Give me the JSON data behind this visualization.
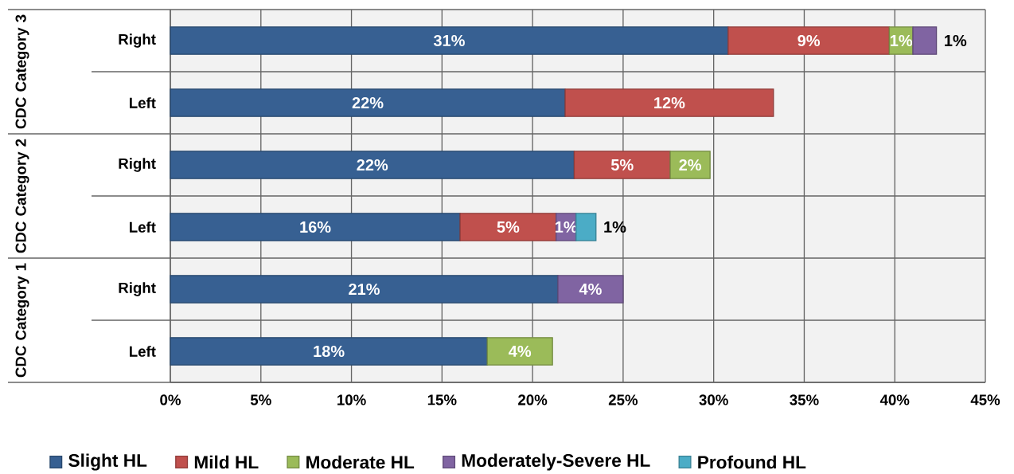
{
  "chart_data": {
    "type": "bar",
    "orientation": "horizontal",
    "stacked": true,
    "categories": [
      "Right",
      "Left",
      "Right",
      "Left",
      "Right",
      "Left"
    ],
    "annotations": [
      "CDC Category 3",
      "CDC Category 2",
      "CDC Category 1"
    ],
    "series": [
      {
        "name": "Slight HL",
        "color": "#376092",
        "values": [
          30.8,
          21.8,
          22.3,
          16.0,
          21.4,
          17.5
        ],
        "value_labels": [
          "31%",
          "22%",
          "22%",
          "16%",
          "21%",
          "18%"
        ]
      },
      {
        "name": "Mild HL",
        "color": "#c0504d",
        "values": [
          8.9,
          11.5,
          5.3,
          5.3,
          null,
          null
        ],
        "value_labels": [
          "9%",
          "12%",
          "5%",
          "5%",
          null,
          null
        ]
      },
      {
        "name": "Moderate HL",
        "color": "#9bbb59",
        "values": [
          1.3,
          null,
          2.2,
          null,
          null,
          3.6
        ],
        "value_labels": [
          "1%",
          null,
          "2%",
          null,
          null,
          "4%"
        ]
      },
      {
        "name": "Moderately-Severe HL",
        "color": "#8064a2",
        "values": [
          1.3,
          null,
          null,
          1.1,
          3.6,
          null
        ],
        "value_labels": [
          "1%",
          null,
          null,
          "1%",
          "4%",
          null
        ]
      },
      {
        "name": "Profound HL",
        "color": "#4bacc6",
        "values": [
          null,
          null,
          null,
          1.1,
          null,
          null
        ],
        "value_labels": [
          null,
          null,
          null,
          "1%",
          null,
          null
        ]
      }
    ],
    "xlim": [
      0,
      45
    ],
    "xticks": [
      {
        "value": 0,
        "label": "0%"
      },
      {
        "value": 5,
        "label": "5%"
      },
      {
        "value": 10,
        "label": "10%"
      },
      {
        "value": 15,
        "label": "15%"
      },
      {
        "value": 20,
        "label": "20%"
      },
      {
        "value": 25,
        "label": "25%"
      },
      {
        "value": 30,
        "label": "30%"
      },
      {
        "value": 35,
        "label": "35%"
      },
      {
        "value": 40,
        "label": "40%"
      },
      {
        "value": 45,
        "label": "45%"
      }
    ],
    "grid": true,
    "legend": "bottom"
  }
}
